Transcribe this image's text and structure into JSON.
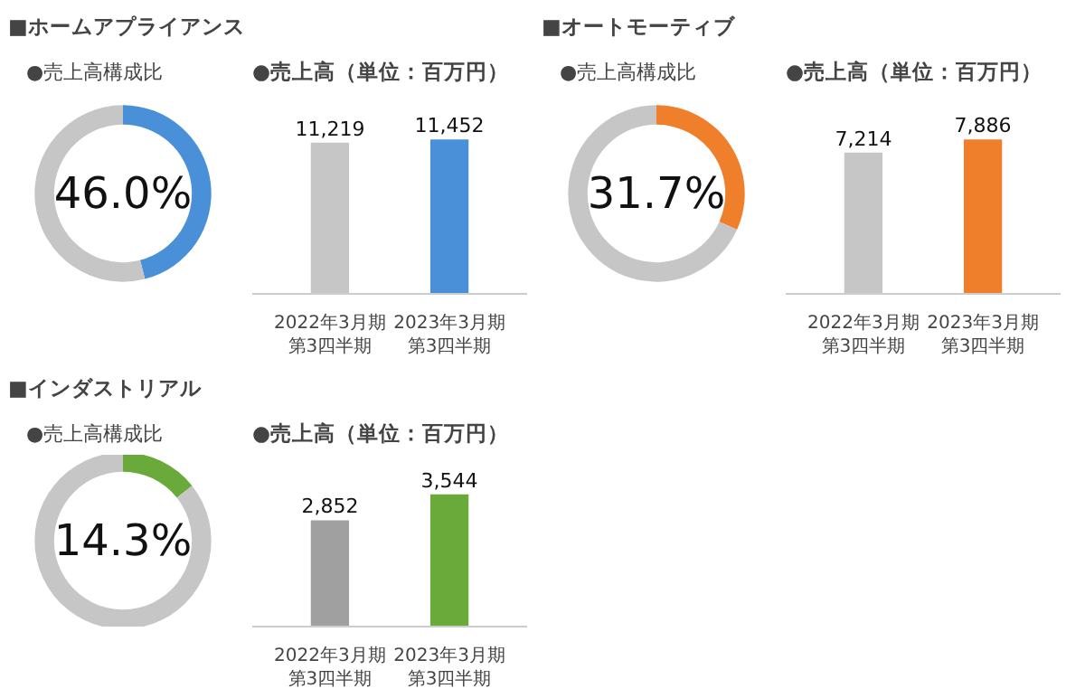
{
  "chart_data": [
    {
      "type": "donut",
      "title": "■ホームアプライアンス",
      "subtitle": "●売上高構成比",
      "categories": [
        null,
        null
      ],
      "values": [
        46.0,
        54.0
      ],
      "colors": [
        "#4a90d9",
        "#c6c6c6"
      ],
      "value_labels": [
        "46.0%",
        null
      ]
    },
    {
      "type": "bar",
      "title": "●売上高（単位：百万円）",
      "categories": [
        "2022年3月期第3四半期",
        "2023年3月期第3四半期"
      ],
      "values": [
        11219,
        11452
      ],
      "colors": [
        "#c6c6c6",
        "#4a90d9"
      ],
      "value_labels": [
        "11,219",
        "11,452"
      ],
      "tick_labels": "x"
    },
    {
      "type": "donut",
      "title": "■オートモーティブ",
      "subtitle": "●売上高構成比",
      "categories": [
        null,
        null
      ],
      "values": [
        31.7,
        68.3
      ],
      "colors": [
        "#f07f2c",
        "#c6c6c6"
      ],
      "value_labels": [
        "31.7%",
        null
      ]
    },
    {
      "type": "bar",
      "title": "●売上高（単位：百万円）",
      "categories": [
        "2022年3月期第3四半期",
        "2023年3月期第3四半期"
      ],
      "values": [
        7214,
        7886
      ],
      "colors": [
        "#c6c6c6",
        "#f07f2c"
      ],
      "value_labels": [
        "7,214",
        "7,886"
      ],
      "tick_labels": "x"
    },
    {
      "type": "donut",
      "title": "■インダストリアル",
      "subtitle": "●売上高構成比",
      "categories": [
        null,
        null
      ],
      "values": [
        14.3,
        85.7
      ],
      "colors": [
        "#6aaa3a",
        "#c6c6c6"
      ],
      "value_labels": [
        "14.3%",
        null
      ]
    },
    {
      "type": "bar",
      "title": "●売上高（単位：百万円）",
      "categories": [
        "2022年3月期第3四半期",
        "2023年3月期第3四半期"
      ],
      "values": [
        2852,
        3544
      ],
      "colors": [
        "#a0a0a0",
        "#6aaa3a"
      ],
      "value_labels": [
        "2,852",
        "3,544"
      ],
      "tick_labels": "x"
    }
  ]
}
